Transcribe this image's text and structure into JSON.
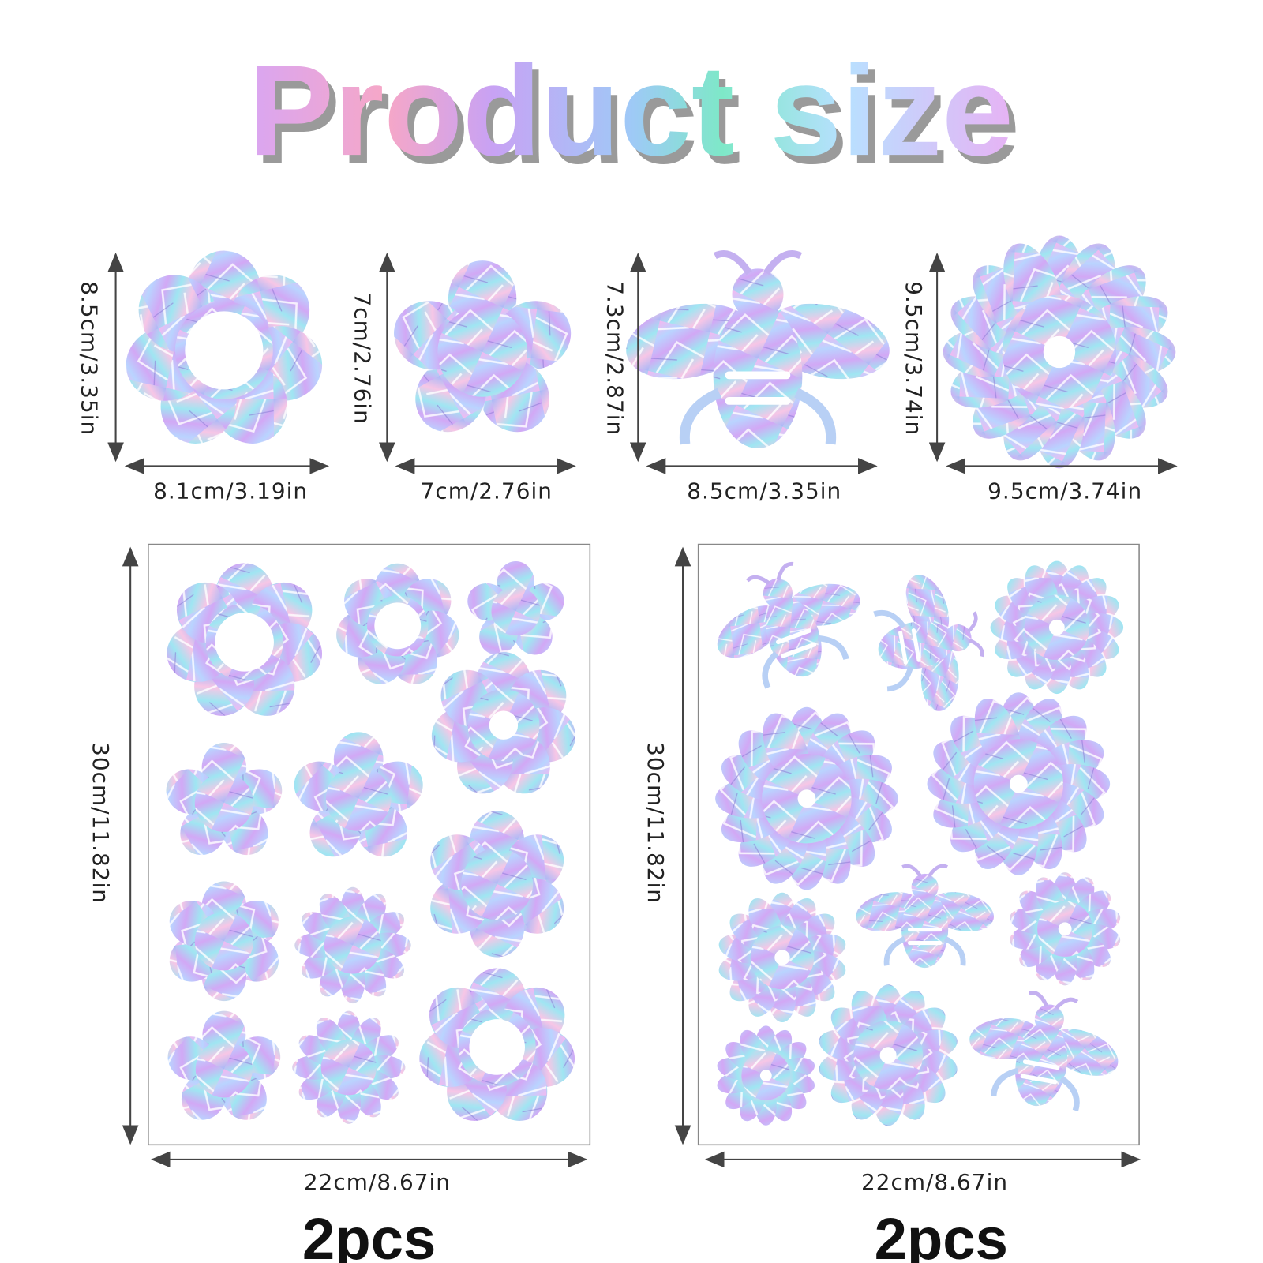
{
  "title": "Product size",
  "items": [
    {
      "height": "8.5cm/3.35in",
      "width": "8.1cm/3.19in"
    },
    {
      "height": "7cm/2.76in",
      "width": "7cm/2.76in"
    },
    {
      "height": "7.3cm/2.87in",
      "width": "8.5cm/3.35in"
    },
    {
      "height": "9.5cm/3.74in",
      "width": "9.5cm/3.74in"
    }
  ],
  "sheets": [
    {
      "height": "30cm/11.82in",
      "width": "22cm/8.67in",
      "count": "2pcs"
    },
    {
      "height": "30cm/11.82in",
      "width": "22cm/8.67in",
      "count": "2pcs"
    }
  ]
}
